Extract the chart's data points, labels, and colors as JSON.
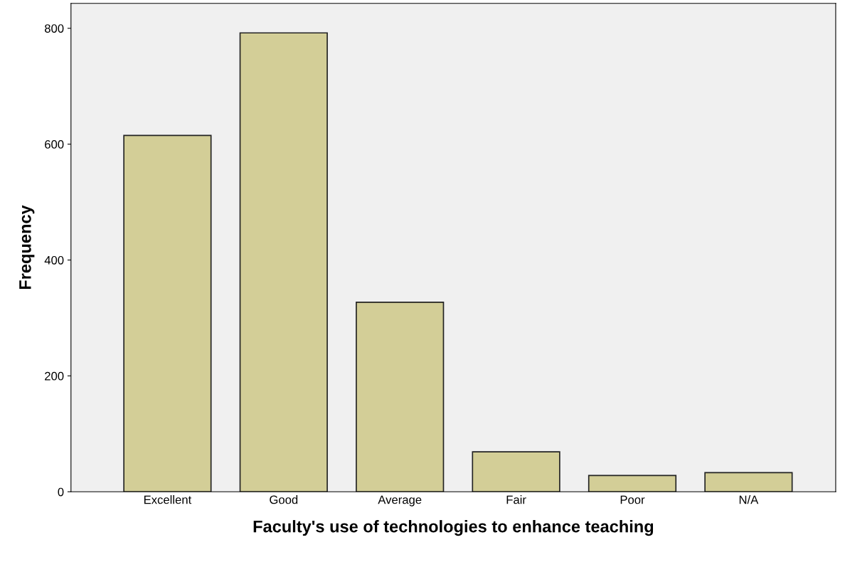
{
  "chart_data": {
    "type": "bar",
    "xlabel": "Faculty's use of technologies to enhance teaching",
    "ylabel": "Frequency",
    "categories": [
      "Excellent",
      "Good",
      "Average",
      "Fair",
      "Poor",
      "N/A"
    ],
    "values": [
      615,
      792,
      327,
      69,
      28,
      33
    ],
    "color": "#d3ce97",
    "ylim": [
      0,
      843
    ],
    "yticks": [
      0,
      200,
      400,
      600,
      800
    ],
    "grid": false,
    "legend": false
  }
}
